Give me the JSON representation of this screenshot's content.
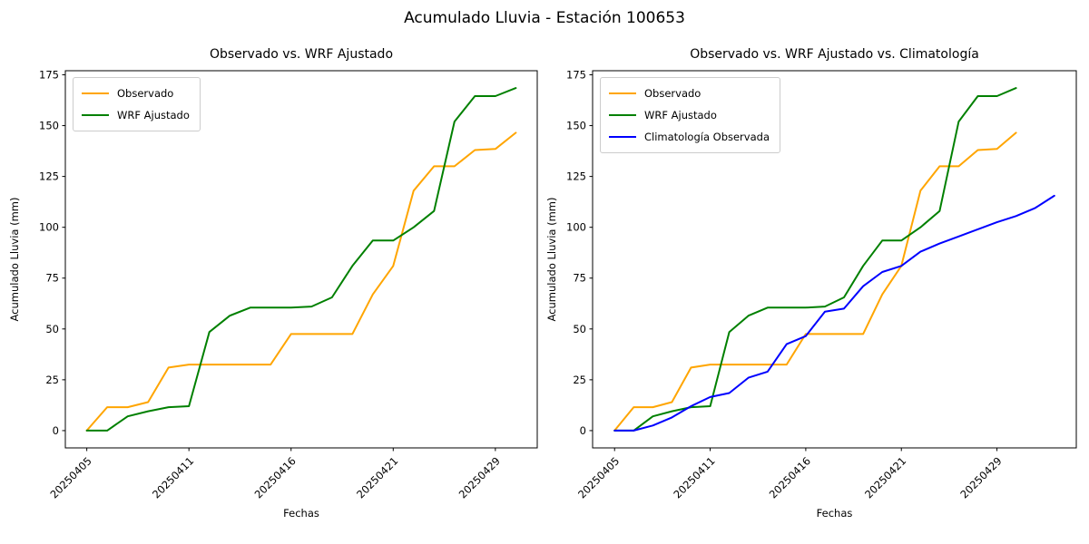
{
  "figure": {
    "title": "Acumulado Lluvia - Estación 100653",
    "background": "#ffffff",
    "text_color": "#000000",
    "spine_color": "#000000"
  },
  "chart_data": [
    {
      "type": "line",
      "title": "Observado vs. WRF Ajustado",
      "xlabel": "Fechas",
      "ylabel": "Acumulado Lluvia (mm)",
      "ylim": [
        -8.5,
        177
      ],
      "yticks": [
        0,
        25,
        50,
        75,
        100,
        125,
        150,
        175
      ],
      "x_slots": 22,
      "xtick_positions": [
        0,
        5,
        10,
        15,
        20
      ],
      "xtick_labels": [
        "20250405",
        "20250411",
        "20250416",
        "20250421",
        "20250429"
      ],
      "xtick_rotation": 45,
      "grid": false,
      "legend_position": "upper-left",
      "series": [
        {
          "name": "Observado",
          "color": "#ffa500",
          "values": [
            0,
            11.5,
            11.5,
            14,
            31,
            32.5,
            32.5,
            32.5,
            32.5,
            32.5,
            47.5,
            47.5,
            47.5,
            47.5,
            67,
            81,
            118,
            130,
            130,
            138,
            138.5,
            146.5
          ]
        },
        {
          "name": "WRF Ajustado",
          "color": "#008000",
          "values": [
            0,
            0,
            7,
            9.5,
            11.5,
            12,
            48.5,
            56.5,
            60.5,
            60.5,
            60.5,
            61,
            65.5,
            81,
            93.5,
            93.5,
            100,
            108,
            152,
            164.5,
            164.5,
            168.5
          ]
        }
      ]
    },
    {
      "type": "line",
      "title": "Observado vs. WRF Ajustado vs. Climatología",
      "xlabel": "Fechas",
      "ylabel": "Acumulado Lluvia (mm)",
      "ylim": [
        -8.5,
        177
      ],
      "yticks": [
        0,
        25,
        50,
        75,
        100,
        125,
        150,
        175
      ],
      "x_slots": 24,
      "xtick_positions": [
        0,
        5,
        10,
        15,
        20
      ],
      "xtick_labels": [
        "20250405",
        "20250411",
        "20250416",
        "20250421",
        "20250429"
      ],
      "xtick_rotation": 45,
      "grid": false,
      "legend_position": "upper-left",
      "series": [
        {
          "name": "Observado",
          "color": "#ffa500",
          "values": [
            0,
            11.5,
            11.5,
            14,
            31,
            32.5,
            32.5,
            32.5,
            32.5,
            32.5,
            47.5,
            47.5,
            47.5,
            47.5,
            67,
            81,
            118,
            130,
            130,
            138,
            138.5,
            146.5
          ]
        },
        {
          "name": "WRF Ajustado",
          "color": "#008000",
          "values": [
            0,
            0,
            7,
            9.5,
            11.5,
            12,
            48.5,
            56.5,
            60.5,
            60.5,
            60.5,
            61,
            65.5,
            81,
            93.5,
            93.5,
            100,
            108,
            152,
            164.5,
            164.5,
            168.5
          ]
        },
        {
          "name": "Climatología Observada",
          "color": "#0000ff",
          "values": [
            0,
            0,
            2.5,
            6.5,
            12,
            16.5,
            18.5,
            26,
            29,
            42.5,
            46.5,
            58.5,
            60,
            71,
            78,
            81,
            88,
            92,
            95.5,
            99,
            102.5,
            105.5,
            109.5,
            115.5
          ]
        }
      ]
    }
  ]
}
